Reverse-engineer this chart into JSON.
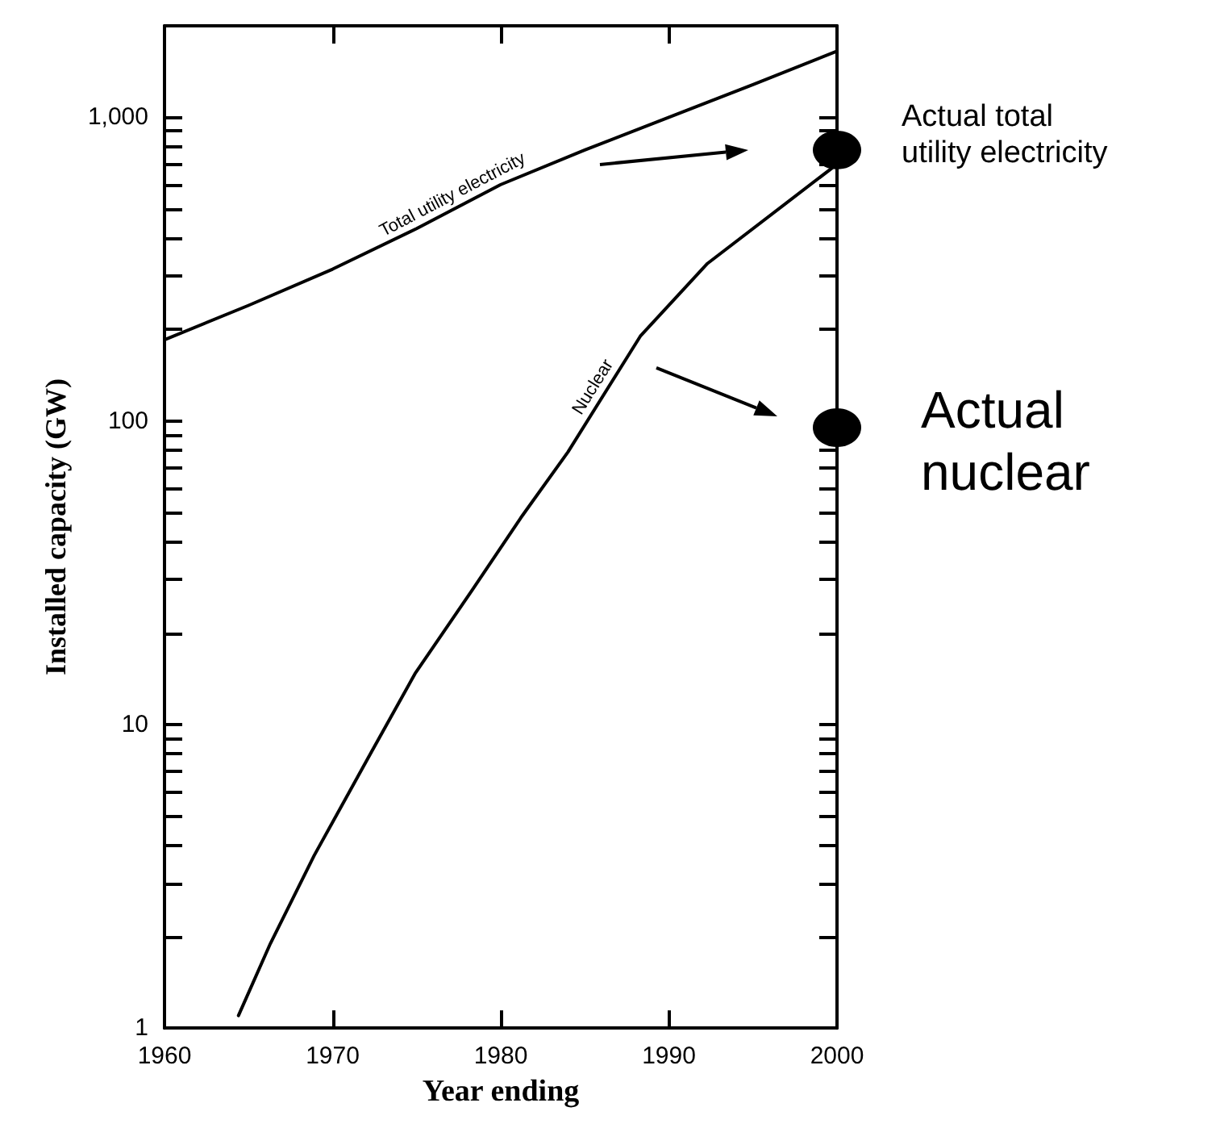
{
  "chart_data": {
    "type": "line",
    "xlabel": "Year ending",
    "ylabel": "Installed capacity (GW)",
    "xlim": [
      1960,
      2000
    ],
    "xticks": [
      1960,
      1970,
      1980,
      1990,
      2000
    ],
    "ylim": [
      1,
      2000
    ],
    "log": "y",
    "yticks": [
      1,
      {
        "value": 2,
        "label": null
      },
      {
        "value": 3,
        "label": null
      },
      {
        "value": 4,
        "label": null
      },
      {
        "value": 5,
        "label": null
      },
      {
        "value": 6,
        "label": null
      },
      {
        "value": 7,
        "label": null
      },
      {
        "value": 8,
        "label": null
      },
      {
        "value": 9,
        "label": null
      },
      10,
      {
        "value": 20,
        "label": null
      },
      {
        "value": 30,
        "label": null
      },
      {
        "value": 40,
        "label": null
      },
      {
        "value": 50,
        "label": null
      },
      {
        "value": 60,
        "label": null
      },
      {
        "value": 70,
        "label": null
      },
      {
        "value": 80,
        "label": null
      },
      {
        "value": 90,
        "label": null
      },
      100,
      {
        "value": 200,
        "label": null
      },
      {
        "value": 300,
        "label": null
      },
      {
        "value": 400,
        "label": null
      },
      {
        "value": 500,
        "label": null
      },
      {
        "value": 600,
        "label": null
      },
      {
        "value": 700,
        "label": null
      },
      {
        "value": 800,
        "label": null
      },
      {
        "value": 900,
        "label": null
      },
      {
        "value": 1000,
        "label": "1,000"
      }
    ],
    "grid": false,
    "legend": false,
    "marker": "none",
    "line_style": "solid",
    "series": [
      {
        "name": "Total utility electricity",
        "color": "#000000",
        "x": [
          1960,
          1965,
          1970,
          1975,
          1980,
          1985,
          1990,
          1995,
          2000
        ],
        "values": [
          185,
          240,
          316,
          430,
          600,
          780,
          1000,
          1280,
          1650
        ]
      },
      {
        "name": "Nuclear",
        "color": "#000000",
        "x": [
          1964.4,
          1966.3,
          1968.9,
          1972.3,
          1974.9,
          1978.3,
          1981.2,
          1984.0,
          1988.3,
          1992.3,
          1999.7
        ],
        "values": [
          1.1,
          1.9,
          3.7,
          8.1,
          14.7,
          27.7,
          48,
          79,
          190,
          330,
          680
        ]
      },
      {
        "type": "scatter",
        "marker": "circle",
        "color": "#000000",
        "x": [
          2000,
          2000
        ],
        "values": [
          780,
          95
        ]
      }
    ],
    "annotations": [
      {
        "text": "Actual total utility electricity",
        "x": 2000,
        "y": 780
      },
      {
        "text": "Actual nuclear",
        "x": 2000,
        "y": 95
      }
    ]
  }
}
